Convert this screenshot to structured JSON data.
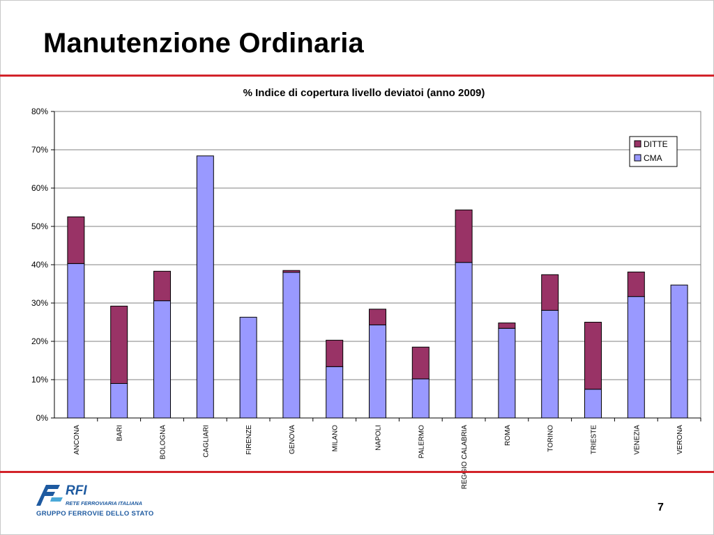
{
  "slide": {
    "title": "Manutenzione Ordinaria",
    "page_number": "7",
    "colors": {
      "rule": "#d2232a",
      "brand": "#1e5aa0"
    }
  },
  "logo": {
    "brand": "RFI",
    "subtitle": "RETE FERROVIARIA ITALIANA",
    "group": "GRUPPO FERROVIE DELLO STATO",
    "icon": "fs-logo-icon"
  },
  "chart_data": {
    "type": "bar",
    "stacked": true,
    "title": "% Indice di copertura livello deviatoi (anno 2009)",
    "xlabel": "",
    "ylabel": "",
    "ylim": [
      0,
      0.8
    ],
    "yticks": [
      "0%",
      "10%",
      "20%",
      "30%",
      "40%",
      "50%",
      "60%",
      "70%",
      "80%"
    ],
    "grid": true,
    "legend_position": "top-right",
    "categories": [
      "ANCONA",
      "BARI",
      "BOLOGNA",
      "CAGLIARI",
      "FIRENZE",
      "GENOVA",
      "MILANO",
      "NAPOLI",
      "PALERMO",
      "REGGIO CALABRIA",
      "ROMA",
      "TORINO",
      "TRIESTE",
      "VENEZIA",
      "VERONA"
    ],
    "series": [
      {
        "name": "CMA",
        "color": "#9999ff",
        "values": [
          0.403,
          0.09,
          0.306,
          0.684,
          0.263,
          0.38,
          0.134,
          0.243,
          0.102,
          0.406,
          0.234,
          0.281,
          0.075,
          0.317,
          0.347
        ]
      },
      {
        "name": "DITTE",
        "color": "#993366",
        "values": [
          0.122,
          0.202,
          0.077,
          0,
          0,
          0.005,
          0.069,
          0.041,
          0.083,
          0.137,
          0.014,
          0.093,
          0.175,
          0.064,
          0
        ]
      }
    ]
  }
}
